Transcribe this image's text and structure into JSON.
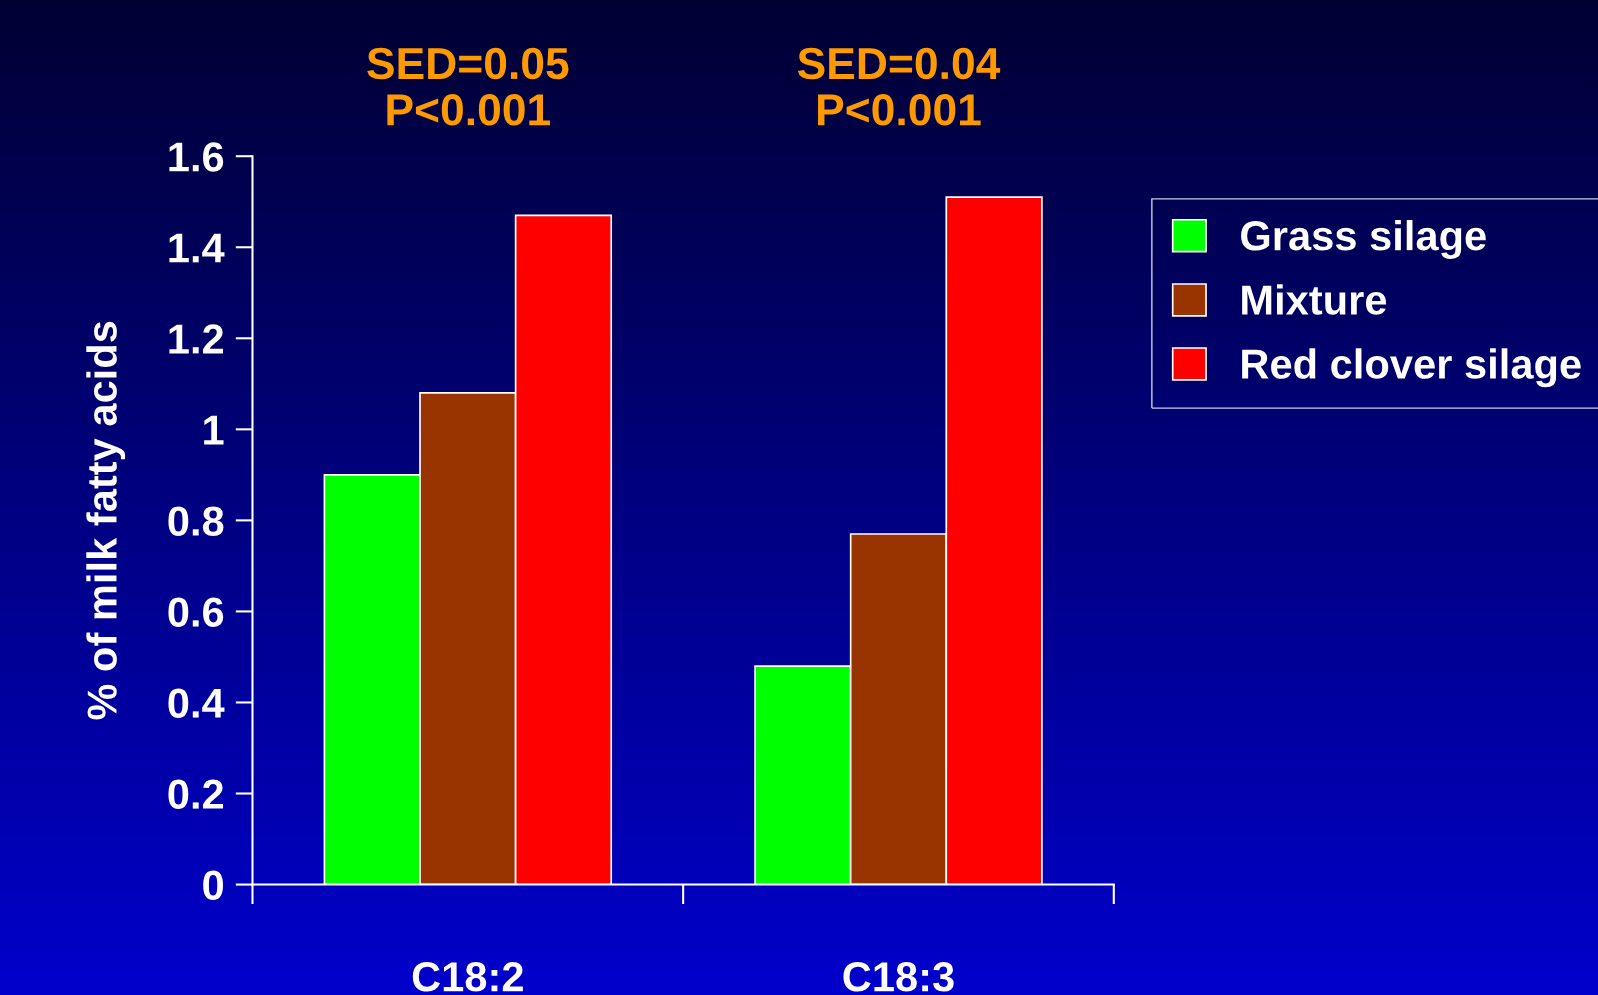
{
  "chart_data": {
    "type": "bar",
    "ylabel": "% of milk fatty acids",
    "categories": [
      "C18:2",
      "C18:3"
    ],
    "series": [
      {
        "name": "Grass silage",
        "color": "#00ff00",
        "values": [
          0.9,
          0.48
        ]
      },
      {
        "name": "Mixture",
        "color": "#993300",
        "values": [
          1.08,
          0.77
        ]
      },
      {
        "name": "Red clover silage",
        "color": "#ff0000",
        "values": [
          1.47,
          1.51
        ]
      }
    ],
    "ylim": [
      0,
      1.6
    ],
    "yticks": [
      0,
      0.2,
      0.4,
      0.6,
      0.8,
      1,
      1.2,
      1.4,
      1.6
    ],
    "annotations": [
      "SED=0.05\nP<0.001",
      "SED=0.04\nP<0.001"
    ],
    "legend": "right",
    "grid": false
  }
}
